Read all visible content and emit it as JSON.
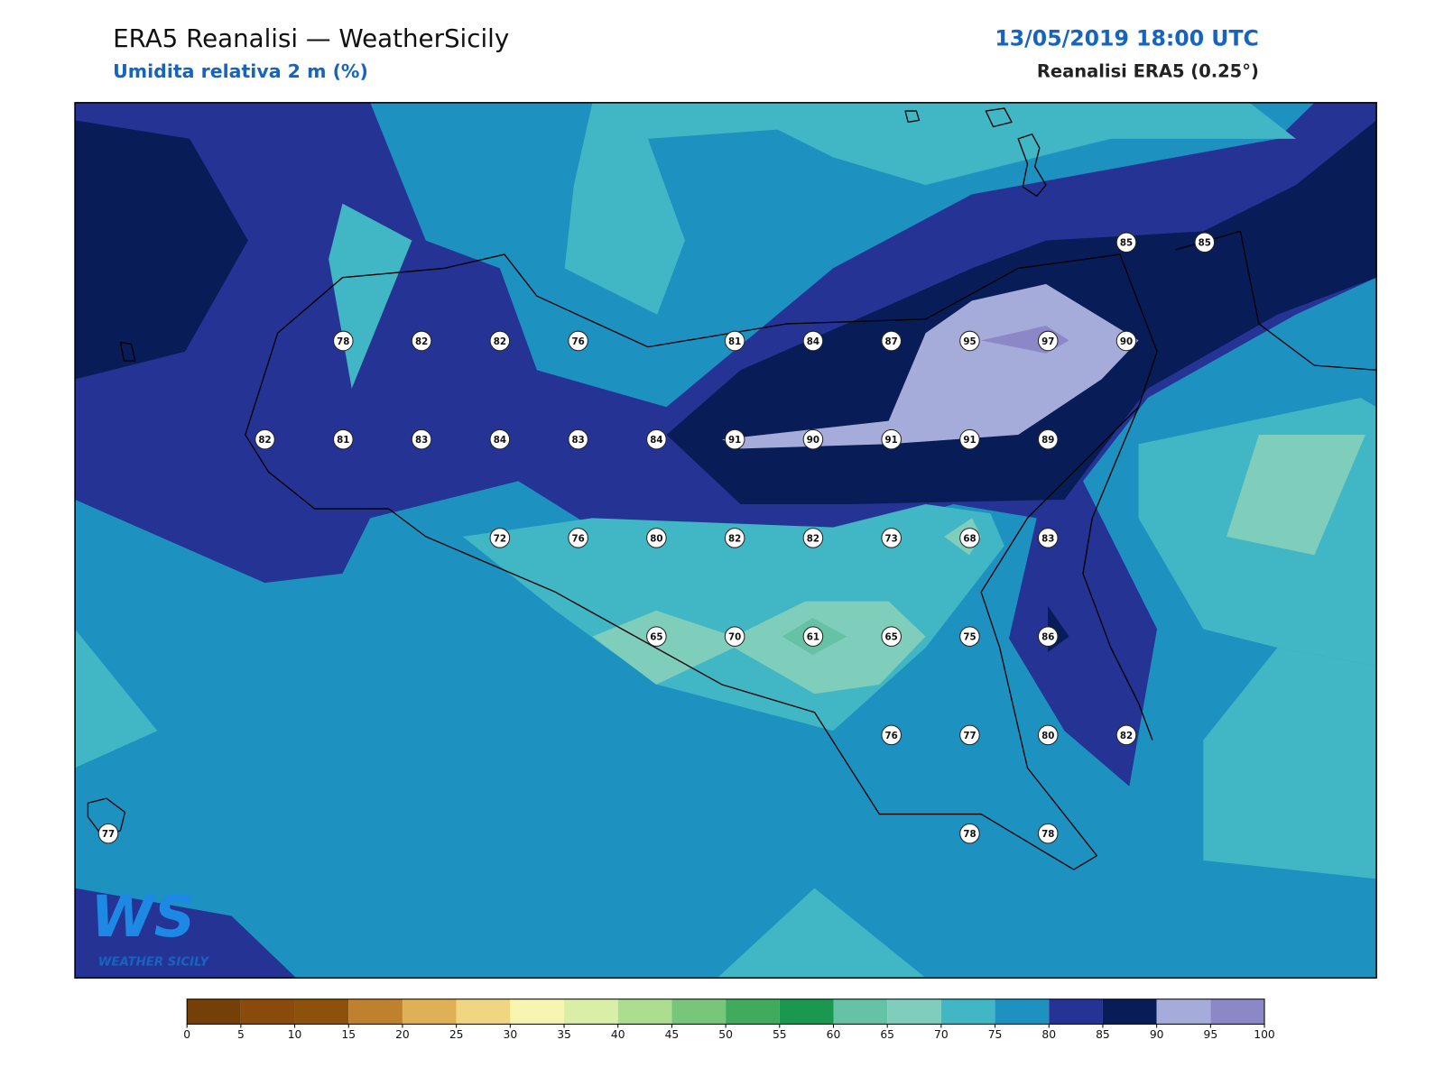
{
  "header": {
    "title": "ERA5 Reanalisi — WeatherSicily",
    "subtitle": "Umidita relativa 2 m (%)",
    "datetime": "13/05/2019 18:00 UTC",
    "source": "Reanalisi ERA5 (0.25°)"
  },
  "logo": {
    "mark": "WS",
    "name": "WEATHER SICILY"
  },
  "stations": [
    {
      "value": 85
    },
    {
      "value": 85
    },
    {
      "value": 78
    },
    {
      "value": 82
    },
    {
      "value": 82
    },
    {
      "value": 76
    },
    {
      "value": 81
    },
    {
      "value": 84
    },
    {
      "value": 87
    },
    {
      "value": 95
    },
    {
      "value": 97
    },
    {
      "value": 90
    },
    {
      "value": 82
    },
    {
      "value": 81
    },
    {
      "value": 83
    },
    {
      "value": 84
    },
    {
      "value": 83
    },
    {
      "value": 84
    },
    {
      "value": 91
    },
    {
      "value": 90
    },
    {
      "value": 91
    },
    {
      "value": 91
    },
    {
      "value": 89
    },
    {
      "value": 72
    },
    {
      "value": 76
    },
    {
      "value": 80
    },
    {
      "value": 82
    },
    {
      "value": 82
    },
    {
      "value": 73
    },
    {
      "value": 68
    },
    {
      "value": 83
    },
    {
      "value": 65
    },
    {
      "value": 70
    },
    {
      "value": 61
    },
    {
      "value": 65
    },
    {
      "value": 75
    },
    {
      "value": 86
    },
    {
      "value": 76
    },
    {
      "value": 77
    },
    {
      "value": 80
    },
    {
      "value": 82
    },
    {
      "value": 77
    },
    {
      "value": 78
    },
    {
      "value": 78
    }
  ],
  "colorbar": {
    "ticks": [
      0,
      5,
      10,
      15,
      20,
      25,
      30,
      35,
      40,
      45,
      50,
      55,
      60,
      65,
      70,
      75,
      80,
      85,
      90,
      95,
      100
    ],
    "colors": [
      "#744008",
      "#8a4a0c",
      "#8c510a",
      "#bf812d",
      "#dfb056",
      "#f0d680",
      "#f7f5b0",
      "#d9efa8",
      "#addd8e",
      "#78c679",
      "#41ab5d",
      "#1a9850",
      "#66c2a4",
      "#7fcdbb",
      "#41b6c4",
      "#1d91c0",
      "#253494",
      "#081d58",
      "#a6acd9",
      "#8c88c8"
    ]
  }
}
